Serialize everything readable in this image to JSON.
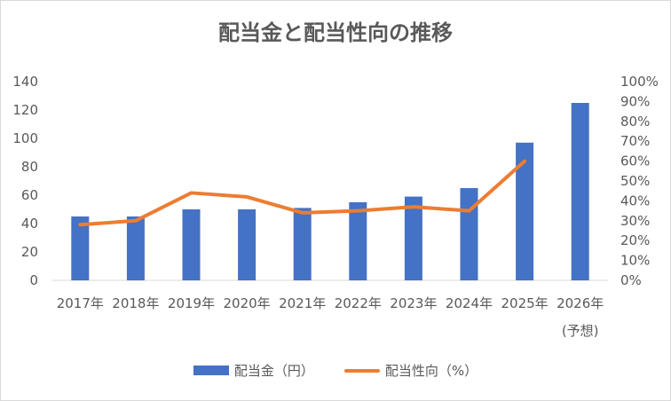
{
  "colors": {
    "bar": "#4472c4",
    "line": "#ed7d31",
    "grid": "#d9d9d9",
    "text": "#595959"
  },
  "chart_data": {
    "type": "bar",
    "title": "配当金と配当性向の推移",
    "categories": [
      "2017年",
      "2018年",
      "2019年",
      "2020年",
      "2021年",
      "2022年",
      "2023年",
      "2024年",
      "2025年",
      "2026年"
    ],
    "category_sublabels": [
      "",
      "",
      "",
      "",
      "",
      "",
      "",
      "",
      "",
      "(予想)"
    ],
    "y_left": {
      "ylim": [
        0,
        140
      ],
      "ticks": [
        "0",
        "20",
        "40",
        "60",
        "80",
        "100",
        "120",
        "140"
      ]
    },
    "y_right": {
      "ylim": [
        0,
        100
      ],
      "ticks": [
        "0%",
        "10%",
        "20%",
        "30%",
        "40%",
        "50%",
        "60%",
        "70%",
        "80%",
        "90%",
        "100%"
      ]
    },
    "series": [
      {
        "name": "配当金（円）",
        "type": "bar",
        "axis": "left",
        "values": [
          45,
          45,
          50,
          50,
          51,
          55,
          59,
          65,
          97,
          125
        ]
      },
      {
        "name": "配当性向（%）",
        "type": "line",
        "axis": "right",
        "values": [
          28,
          30,
          44,
          42,
          34,
          35,
          37,
          35,
          60,
          null
        ]
      }
    ],
    "legend": "bottom",
    "grid": false
  }
}
